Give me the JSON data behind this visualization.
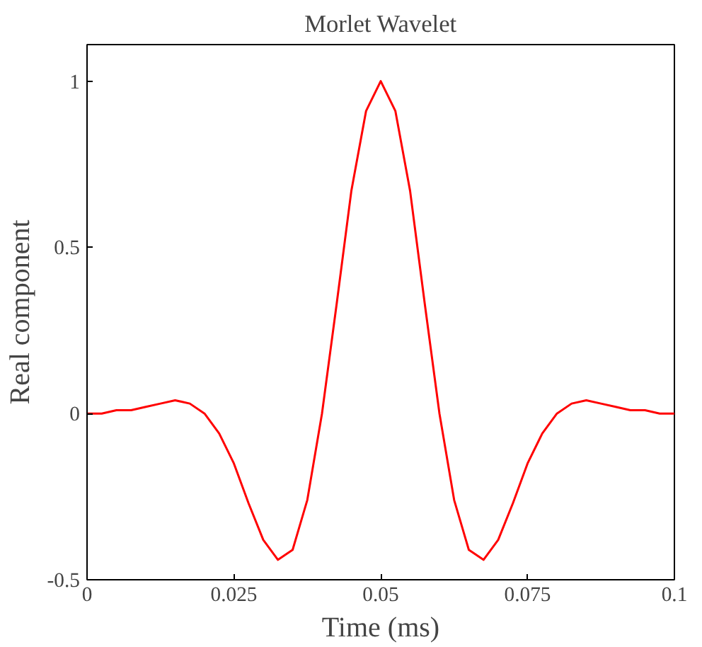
{
  "chart_data": {
    "type": "line",
    "title": "Morlet Wavelet",
    "xlabel": "Time (ms)",
    "ylabel": "Real component",
    "x": [
      0,
      0.0025,
      0.005,
      0.0075,
      0.01,
      0.0125,
      0.015,
      0.0175,
      0.02,
      0.0225,
      0.025,
      0.0275,
      0.03,
      0.0325,
      0.035,
      0.0375,
      0.04,
      0.0425,
      0.045,
      0.0475,
      0.05,
      0.0525,
      0.055,
      0.0575,
      0.06,
      0.0625,
      0.065,
      0.0675,
      0.07,
      0.0725,
      0.075,
      0.0775,
      0.08,
      0.0825,
      0.085,
      0.0875,
      0.09,
      0.0925,
      0.095,
      0.0975,
      0.1
    ],
    "series": [
      {
        "color": "#ff0000",
        "values": [
          0,
          0,
          0.01,
          0.01,
          0.02,
          0.03,
          0.04,
          0.03,
          0,
          -0.06,
          -0.15,
          -0.27,
          -0.38,
          -0.44,
          -0.41,
          -0.26,
          0,
          0.33,
          0.67,
          0.91,
          1,
          0.91,
          0.67,
          0.33,
          0,
          -0.26,
          -0.41,
          -0.44,
          -0.38,
          -0.27,
          -0.15,
          -0.06,
          0,
          0.03,
          0.04,
          0.03,
          0.02,
          0.01,
          0.01,
          0,
          0
        ]
      }
    ],
    "xlim": [
      0,
      0.1
    ],
    "ylim": [
      -0.5,
      1.11
    ],
    "xticks": [
      0,
      0.025,
      0.05,
      0.075,
      0.1
    ],
    "yticks": [
      -0.5,
      0,
      0.5,
      1
    ],
    "grid": false,
    "marker": "none",
    "line_style": "solid"
  }
}
